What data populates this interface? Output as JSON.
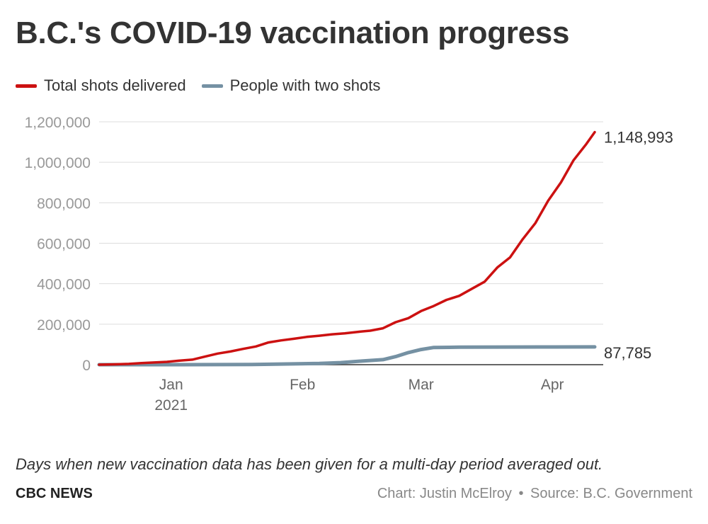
{
  "title": "B.C.'s COVID-19 vaccination progress",
  "note": "Days when new vaccination data has been given for a multi-day period averaged out.",
  "brand": "CBC NEWS",
  "credit": {
    "chart_by": "Chart: Justin McElroy",
    "separator": "•",
    "source": "Source: B.C. Government"
  },
  "colors": {
    "total": "#cc1111",
    "two_shots": "#7591a3",
    "grid": "#dddddd",
    "axis_text": "#999999"
  },
  "chart_data": {
    "type": "line",
    "title": "B.C.'s COVID-19 vaccination progress",
    "xlabel": "",
    "ylabel": "",
    "ylim": [
      0,
      1200000
    ],
    "yticks": [
      0,
      200000,
      400000,
      600000,
      800000,
      1000000,
      1200000
    ],
    "ytick_labels": [
      "0",
      "200,000",
      "400,000",
      "600,000",
      "800,000",
      "1,000,000",
      "1,200,000"
    ],
    "xlim": [
      "2020-12-15",
      "2021-04-13"
    ],
    "xticks": [
      {
        "date": "2021-01-01",
        "label": "Jan",
        "sublabel": "2021"
      },
      {
        "date": "2021-02-01",
        "label": "Feb",
        "sublabel": ""
      },
      {
        "date": "2021-03-01",
        "label": "Mar",
        "sublabel": ""
      },
      {
        "date": "2021-04-01",
        "label": "Apr",
        "sublabel": ""
      }
    ],
    "grid": true,
    "legend": "top-left",
    "series": [
      {
        "name": "Total shots delivered",
        "color": "#cc1111",
        "end_label": "1,148,993",
        "points": [
          [
            "2020-12-15",
            0
          ],
          [
            "2020-12-18",
            1500
          ],
          [
            "2020-12-22",
            4000
          ],
          [
            "2020-12-25",
            8000
          ],
          [
            "2020-12-28",
            11000
          ],
          [
            "2020-12-31",
            14000
          ],
          [
            "2021-01-03",
            20000
          ],
          [
            "2021-01-06",
            25000
          ],
          [
            "2021-01-09",
            40000
          ],
          [
            "2021-01-12",
            55000
          ],
          [
            "2021-01-15",
            65000
          ],
          [
            "2021-01-18",
            78000
          ],
          [
            "2021-01-21",
            90000
          ],
          [
            "2021-01-24",
            110000
          ],
          [
            "2021-01-27",
            120000
          ],
          [
            "2021-01-30",
            128000
          ],
          [
            "2021-02-02",
            137000
          ],
          [
            "2021-02-05",
            143000
          ],
          [
            "2021-02-08",
            150000
          ],
          [
            "2021-02-11",
            155000
          ],
          [
            "2021-02-14",
            162000
          ],
          [
            "2021-02-17",
            168000
          ],
          [
            "2021-02-20",
            180000
          ],
          [
            "2021-02-23",
            210000
          ],
          [
            "2021-02-26",
            230000
          ],
          [
            "2021-03-01",
            265000
          ],
          [
            "2021-03-04",
            290000
          ],
          [
            "2021-03-07",
            320000
          ],
          [
            "2021-03-10",
            340000
          ],
          [
            "2021-03-13",
            375000
          ],
          [
            "2021-03-16",
            410000
          ],
          [
            "2021-03-19",
            480000
          ],
          [
            "2021-03-22",
            530000
          ],
          [
            "2021-03-25",
            620000
          ],
          [
            "2021-03-28",
            700000
          ],
          [
            "2021-03-31",
            810000
          ],
          [
            "2021-04-03",
            900000
          ],
          [
            "2021-04-06",
            1010000
          ],
          [
            "2021-04-09",
            1090000
          ],
          [
            "2021-04-11",
            1148993
          ]
        ]
      },
      {
        "name": "People with two shots",
        "color": "#7591a3",
        "end_label": "87,785",
        "points": [
          [
            "2020-12-15",
            0
          ],
          [
            "2021-01-01",
            0
          ],
          [
            "2021-01-20",
            1000
          ],
          [
            "2021-01-27",
            3000
          ],
          [
            "2021-02-05",
            6000
          ],
          [
            "2021-02-10",
            10000
          ],
          [
            "2021-02-15",
            18000
          ],
          [
            "2021-02-20",
            25000
          ],
          [
            "2021-02-23",
            40000
          ],
          [
            "2021-02-26",
            60000
          ],
          [
            "2021-03-01",
            75000
          ],
          [
            "2021-03-04",
            85000
          ],
          [
            "2021-03-10",
            86500
          ],
          [
            "2021-03-20",
            87000
          ],
          [
            "2021-04-01",
            87500
          ],
          [
            "2021-04-11",
            87785
          ]
        ]
      }
    ]
  }
}
